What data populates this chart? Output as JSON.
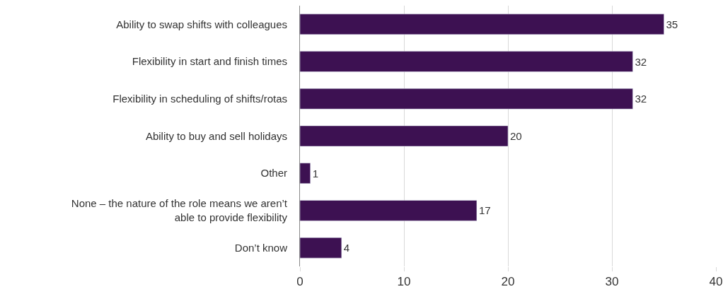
{
  "chart_data": {
    "type": "bar",
    "orientation": "horizontal",
    "categories": [
      "Ability to swap shifts with colleagues",
      "Flexibility in start and finish times",
      "Flexibility in scheduling of shifts/rotas",
      "Ability to buy and sell holidays",
      "Other",
      "None – the nature of the role means we aren’t\nable to provide flexibility",
      "Don’t know"
    ],
    "values": [
      35,
      32,
      32,
      20,
      1,
      17,
      4
    ],
    "color": "#3d1152",
    "xlim": [
      0,
      40
    ],
    "xticks": [
      0,
      10,
      20,
      30,
      40
    ],
    "grid": "x",
    "data_labels": true,
    "legend": false
  }
}
